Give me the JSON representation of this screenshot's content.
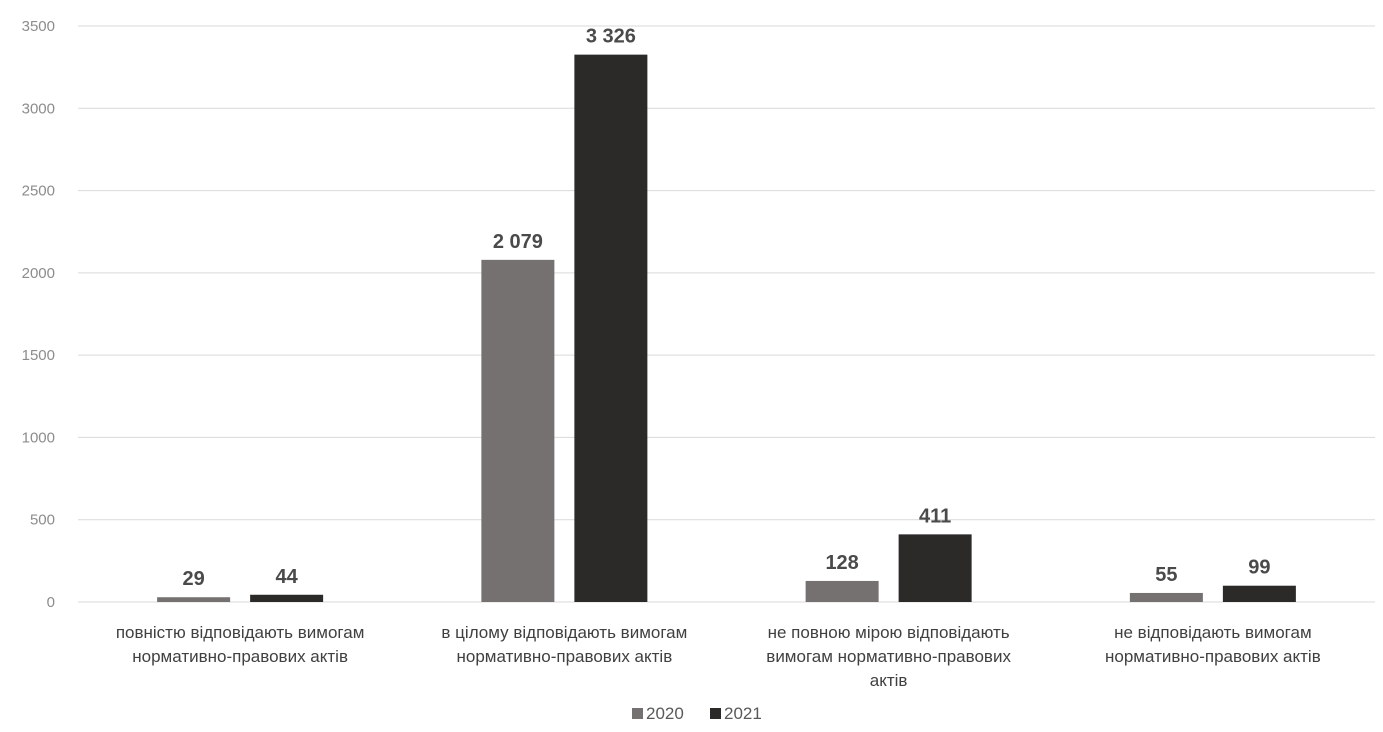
{
  "chart_data": {
    "type": "bar",
    "categories": [
      [
        "повністю відповідають вимогам",
        "нормативно-правових актів"
      ],
      [
        "в цілому відповідають вимогам",
        "нормативно-правових актів"
      ],
      [
        "не повною мірою відповідають",
        "вимогам нормативно-правових",
        "актів"
      ],
      [
        "не відповідають вимогам",
        "нормативно-правових актів"
      ]
    ],
    "series": [
      {
        "name": "2020",
        "color": "#767171",
        "values": [
          29,
          2079,
          128,
          55
        ],
        "labels": [
          "29",
          "2 079",
          "128",
          "55"
        ]
      },
      {
        "name": "2021",
        "color": "#2b2a29",
        "values": [
          44,
          3326,
          411,
          99
        ],
        "labels": [
          "44",
          "3 326",
          "411",
          "99"
        ]
      }
    ],
    "ylim": [
      0,
      3500
    ],
    "yticks": [
      0,
      500,
      1000,
      1500,
      2000,
      2500,
      3000,
      3500
    ],
    "grid": true,
    "legend_position": "bottom",
    "title": "",
    "xlabel": "",
    "ylabel": ""
  }
}
